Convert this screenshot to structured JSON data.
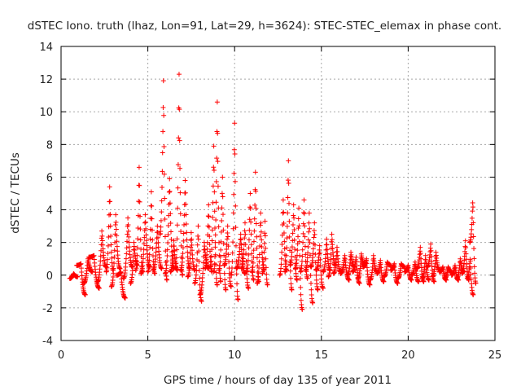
{
  "chart_data": {
    "type": "scatter",
    "title": "dSTEC Iono. truth (lhaz, Lon=91, Lat=29, h=3624): STEC-STEC_elemax in phase cont.",
    "xlabel": "GPS time / hours of day 135 of year 2011",
    "ylabel": "dSTEC  / TECUs",
    "xlim": [
      0,
      25
    ],
    "ylim": [
      -4,
      14
    ],
    "xticks": [
      0,
      5,
      10,
      15,
      20,
      25
    ],
    "yticks": [
      -4,
      -2,
      0,
      2,
      4,
      6,
      8,
      10,
      12,
      14
    ],
    "grid": true,
    "marker": "+",
    "series": [
      {
        "color": "#ff0000",
        "arcs": [
          {
            "t0": 0.5,
            "t1": 0.95,
            "start": -0.2,
            "peak": 0.1,
            "end": -0.1
          },
          {
            "t0": 0.9,
            "t1": 1.4,
            "start": 0.6,
            "peak": 0.7,
            "end": -1.2
          },
          {
            "t0": 1.3,
            "t1": 1.8,
            "start": -0.5,
            "peak": 1.0,
            "end": 0.2
          },
          {
            "t0": 1.6,
            "t1": 2.2,
            "start": 1.1,
            "peak": 1.2,
            "end": -0.8
          },
          {
            "t0": 2.1,
            "t1": 2.6,
            "start": -0.4,
            "peak": 2.7,
            "end": 0.5
          },
          {
            "t0": 2.6,
            "t1": 3.0,
            "start": 0.2,
            "peak": 5.4,
            "end": 0.3
          },
          {
            "t0": 2.9,
            "t1": 3.4,
            "start": -0.7,
            "peak": 3.7,
            "end": 0.4
          },
          {
            "t0": 3.2,
            "t1": 3.7,
            "start": 0.0,
            "peak": 0.2,
            "end": -1.4
          },
          {
            "t0": 3.6,
            "t1": 4.1,
            "start": -0.2,
            "peak": 3.5,
            "end": 0.5
          },
          {
            "t0": 4.0,
            "t1": 4.4,
            "start": -0.5,
            "peak": 2.0,
            "end": 0.6
          },
          {
            "t0": 4.3,
            "t1": 4.7,
            "start": 0.3,
            "peak": 6.6,
            "end": 0.2
          },
          {
            "t0": 4.6,
            "t1": 5.1,
            "start": 0.1,
            "peak": 3.7,
            "end": 0.5
          },
          {
            "t0": 5.0,
            "t1": 5.4,
            "start": 0.2,
            "peak": 5.1,
            "end": 0.1
          },
          {
            "t0": 5.3,
            "t1": 5.8,
            "start": 0.3,
            "peak": 3.0,
            "end": 0.4
          },
          {
            "t0": 5.7,
            "t1": 6.1,
            "start": 2.5,
            "peak": 11.9,
            "end": -0.3
          },
          {
            "t0": 6.0,
            "t1": 6.5,
            "start": 0.1,
            "peak": 5.9,
            "end": 0.4
          },
          {
            "t0": 6.3,
            "t1": 6.7,
            "start": 0.2,
            "peak": 2.1,
            "end": 0.3
          },
          {
            "t0": 6.6,
            "t1": 7.0,
            "start": 0.5,
            "peak": 12.3,
            "end": 0.0
          },
          {
            "t0": 6.9,
            "t1": 7.4,
            "start": 0.3,
            "peak": 5.8,
            "end": 0.4
          },
          {
            "t0": 7.3,
            "t1": 7.7,
            "start": -0.1,
            "peak": 2.6,
            "end": 0.3
          },
          {
            "t0": 7.7,
            "t1": 8.1,
            "start": -0.5,
            "peak": 3.0,
            "end": -1.6
          },
          {
            "t0": 8.0,
            "t1": 8.5,
            "start": -1.2,
            "peak": 2.0,
            "end": 0.4
          },
          {
            "t0": 8.3,
            "t1": 8.7,
            "start": 0.4,
            "peak": 4.3,
            "end": 0.2
          },
          {
            "t0": 8.6,
            "t1": 9.0,
            "start": 0.5,
            "peak": 7.9,
            "end": -0.6
          },
          {
            "t0": 8.8,
            "t1": 9.2,
            "start": 0.2,
            "peak": 10.6,
            "end": -0.4
          },
          {
            "t0": 9.1,
            "t1": 9.5,
            "start": 0.3,
            "peak": 6.0,
            "end": -0.9
          },
          {
            "t0": 9.4,
            "t1": 9.8,
            "start": 0.6,
            "peak": 3.0,
            "end": -0.7
          },
          {
            "t0": 9.8,
            "t1": 10.2,
            "start": 0.0,
            "peak": 9.3,
            "end": -1.5
          },
          {
            "t0": 10.1,
            "t1": 10.6,
            "start": 0.4,
            "peak": 2.5,
            "end": 0.1
          },
          {
            "t0": 10.4,
            "t1": 10.8,
            "start": 0.4,
            "peak": 3.2,
            "end": -0.8
          },
          {
            "t0": 10.7,
            "t1": 11.1,
            "start": 0.2,
            "peak": 5.0,
            "end": -0.3
          },
          {
            "t0": 11.0,
            "t1": 11.4,
            "start": 0.2,
            "peak": 6.3,
            "end": -0.4
          },
          {
            "t0": 11.3,
            "t1": 11.7,
            "start": -0.5,
            "peak": 3.8,
            "end": 0.3
          },
          {
            "t0": 11.6,
            "t1": 11.9,
            "start": 0.1,
            "peak": 3.3,
            "end": -0.6
          },
          {
            "t0": 12.6,
            "t1": 13.0,
            "start": 0.0,
            "peak": 4.6,
            "end": 0.3
          },
          {
            "t0": 12.9,
            "t1": 13.3,
            "start": 0.2,
            "peak": 7.0,
            "end": -0.9
          },
          {
            "t0": 13.2,
            "t1": 13.6,
            "start": 0.6,
            "peak": 4.3,
            "end": -0.3
          },
          {
            "t0": 13.5,
            "t1": 13.9,
            "start": 0.4,
            "peak": 4.1,
            "end": -2.1
          },
          {
            "t0": 13.8,
            "t1": 14.2,
            "start": 0.2,
            "peak": 4.6,
            "end": -0.2
          },
          {
            "t0": 14.1,
            "t1": 14.5,
            "start": 0.3,
            "peak": 3.8,
            "end": -1.7
          },
          {
            "t0": 14.4,
            "t1": 14.8,
            "start": 0.5,
            "peak": 3.2,
            "end": -0.9
          },
          {
            "t0": 14.7,
            "t1": 15.1,
            "start": 0.3,
            "peak": 1.8,
            "end": -0.8
          },
          {
            "t0": 15.1,
            "t1": 15.5,
            "start": 0.2,
            "peak": 2.2,
            "end": 0.3
          },
          {
            "t0": 15.4,
            "t1": 15.8,
            "start": -0.1,
            "peak": 2.5,
            "end": 0.6
          },
          {
            "t0": 15.7,
            "t1": 16.1,
            "start": 0.1,
            "peak": 1.7,
            "end": 0.2
          },
          {
            "t0": 16.1,
            "t1": 16.6,
            "start": 0.1,
            "peak": 1.2,
            "end": -0.3
          },
          {
            "t0": 16.5,
            "t1": 16.9,
            "start": 0.0,
            "peak": 1.4,
            "end": 0.5
          },
          {
            "t0": 16.8,
            "t1": 17.2,
            "start": 0.2,
            "peak": 1.1,
            "end": -0.5
          },
          {
            "t0": 17.1,
            "t1": 17.5,
            "start": -0.2,
            "peak": 1.3,
            "end": 0.6
          },
          {
            "t0": 17.4,
            "t1": 17.8,
            "start": 0.5,
            "peak": 1.0,
            "end": -0.6
          },
          {
            "t0": 17.8,
            "t1": 18.2,
            "start": -0.3,
            "peak": 1.2,
            "end": 0.2
          },
          {
            "t0": 18.2,
            "t1": 18.6,
            "start": 0.1,
            "peak": 0.9,
            "end": -0.4
          },
          {
            "t0": 18.6,
            "t1": 19.0,
            "start": -0.1,
            "peak": 0.8,
            "end": 0.6
          },
          {
            "t0": 19.0,
            "t1": 19.4,
            "start": 0.3,
            "peak": 0.7,
            "end": -0.5
          },
          {
            "t0": 19.4,
            "t1": 19.8,
            "start": -0.2,
            "peak": 0.7,
            "end": 0.5
          },
          {
            "t0": 19.8,
            "t1": 20.2,
            "start": 0.2,
            "peak": 0.6,
            "end": -0.3
          },
          {
            "t0": 20.2,
            "t1": 20.6,
            "start": 0.0,
            "peak": 0.8,
            "end": -0.4
          },
          {
            "t0": 20.5,
            "t1": 20.9,
            "start": 0.4,
            "peak": 1.7,
            "end": -0.4
          },
          {
            "t0": 20.8,
            "t1": 21.2,
            "start": -0.2,
            "peak": 1.2,
            "end": -0.3
          },
          {
            "t0": 21.1,
            "t1": 21.5,
            "start": 0.5,
            "peak": 1.9,
            "end": -0.4
          },
          {
            "t0": 21.4,
            "t1": 21.8,
            "start": -0.1,
            "peak": 1.4,
            "end": 0.3
          },
          {
            "t0": 21.8,
            "t1": 22.2,
            "start": 0.2,
            "peak": 0.5,
            "end": -0.3
          },
          {
            "t0": 22.1,
            "t1": 22.5,
            "start": -0.2,
            "peak": 0.5,
            "end": 0.2
          },
          {
            "t0": 22.5,
            "t1": 22.9,
            "start": 0.0,
            "peak": 0.6,
            "end": -0.3
          },
          {
            "t0": 22.8,
            "t1": 23.2,
            "start": -0.2,
            "peak": 1.0,
            "end": 0.2
          },
          {
            "t0": 23.1,
            "t1": 23.5,
            "start": 0.1,
            "peak": 2.1,
            "end": -0.3
          },
          {
            "t0": 23.4,
            "t1": 23.75,
            "start": -0.2,
            "peak": 1.1,
            "end": -1.2
          },
          {
            "t0": 23.55,
            "t1": 23.9,
            "start": 2.0,
            "peak": 4.7,
            "end": -0.5
          }
        ]
      }
    ]
  }
}
